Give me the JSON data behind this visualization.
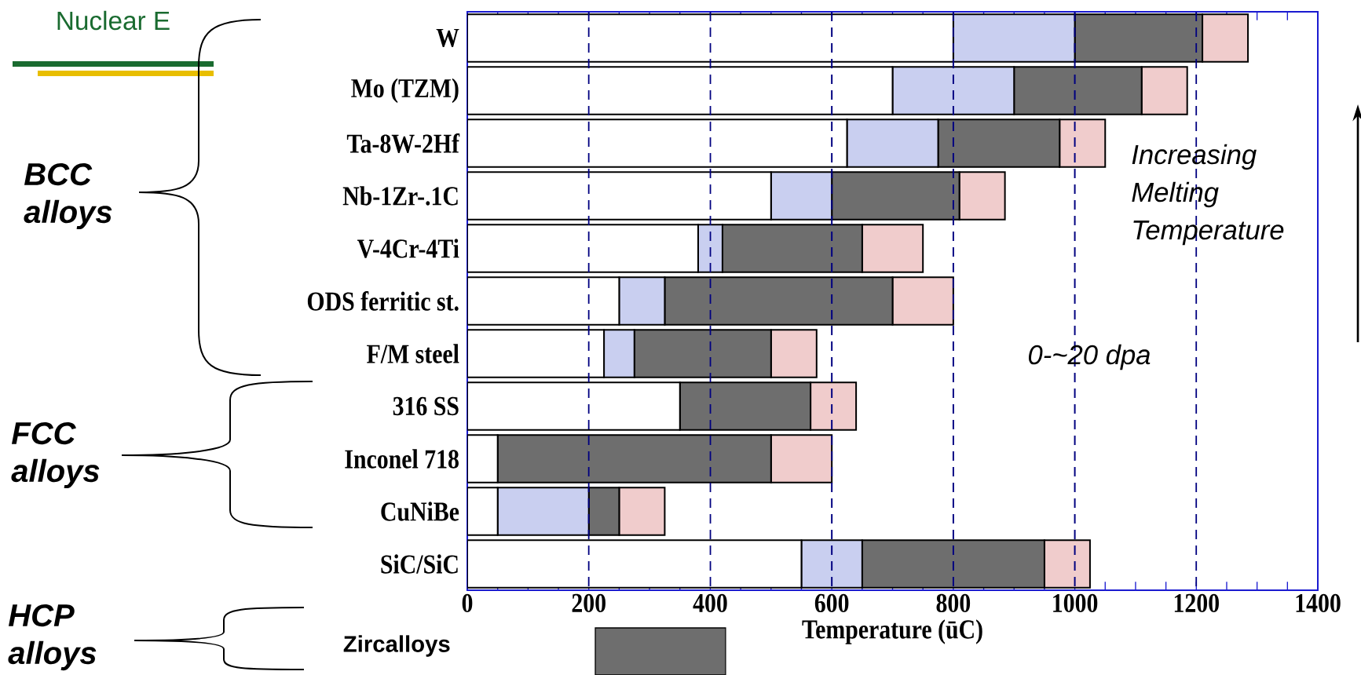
{
  "chart_data": {
    "type": "bar",
    "orientation": "horizontal",
    "stacked": true,
    "xlabel": "Temperature (ūC)",
    "categories": [
      "W",
      "Mo (TZM)",
      "Ta-8W-2Hf",
      "Nb-1Zr-.1C",
      "V-4Cr-4Ti",
      "ODS ferritic st.",
      "F/M steel",
      "316 SS",
      "Inconel 718",
      "CuNiBe",
      "SiC/SiC"
    ],
    "series": [
      {
        "color": "#ffffff",
        "values": [
          800,
          700,
          625,
          500,
          380,
          250,
          225,
          350,
          50,
          50,
          550
        ]
      },
      {
        "color": "#c9cff0",
        "values": [
          200,
          200,
          150,
          100,
          40,
          75,
          50,
          null,
          null,
          150,
          100
        ]
      },
      {
        "color": "#6e6e6e",
        "values": [
          210,
          210,
          200,
          210,
          230,
          375,
          225,
          215,
          450,
          50,
          300
        ]
      },
      {
        "color": "#f0cccc",
        "values": [
          75,
          75,
          75,
          75,
          100,
          100,
          75,
          75,
          100,
          75,
          75
        ]
      }
    ],
    "xlim": [
      0,
      1400
    ],
    "xticks": [
      0,
      {
        "value": 50,
        "label": null
      },
      {
        "value": 100,
        "label": null
      },
      {
        "value": 150,
        "label": null
      },
      200,
      {
        "value": 250,
        "label": null
      },
      {
        "value": 300,
        "label": null
      },
      {
        "value": 350,
        "label": null
      },
      400,
      {
        "value": 450,
        "label": null
      },
      {
        "value": 500,
        "label": null
      },
      {
        "value": 550,
        "label": null
      },
      600,
      {
        "value": 650,
        "label": null
      },
      {
        "value": 700,
        "label": null
      },
      {
        "value": 750,
        "label": null
      },
      800,
      {
        "value": 850,
        "label": null
      },
      {
        "value": 900,
        "label": null
      },
      {
        "value": 950,
        "label": null
      },
      1000,
      {
        "value": 1050,
        "label": null
      },
      {
        "value": 1100,
        "label": null
      },
      {
        "value": 1150,
        "label": null
      },
      1200,
      {
        "value": 1250,
        "label": null
      },
      {
        "value": 1300,
        "label": null
      },
      {
        "value": 1350,
        "label": null
      },
      1400
    ],
    "ref_lines": [
      {
        "axis": "x",
        "value": 200,
        "color": "#000080",
        "line_style": "dashed"
      },
      {
        "axis": "x",
        "value": 400,
        "color": "#000080",
        "line_style": "dashed"
      },
      {
        "axis": "x",
        "value": 600,
        "color": "#000080",
        "line_style": "dashed"
      },
      {
        "axis": "x",
        "value": 800,
        "color": "#000080",
        "line_style": "dashed"
      },
      {
        "axis": "x",
        "value": 1000,
        "color": "#000080",
        "line_style": "dashed"
      },
      {
        "axis": "x",
        "value": 1200,
        "color": "#000080",
        "line_style": "dashed"
      }
    ],
    "annotations": [
      "Nuclear E",
      "BCC alloys",
      "FCC alloys",
      "HCP alloys",
      "Zircalloys",
      "Increasing Melting Temperature",
      "0-~20 dpa"
    ]
  }
}
